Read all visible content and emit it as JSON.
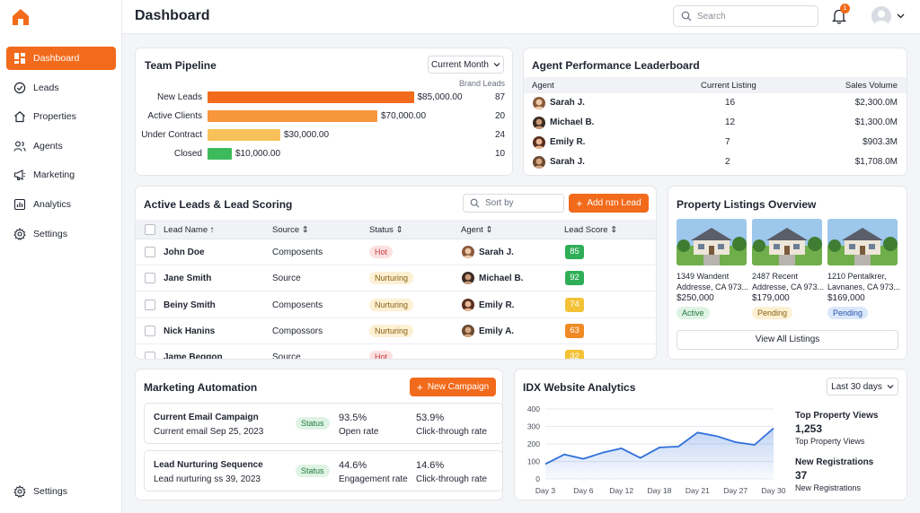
{
  "nav": {
    "items": [
      {
        "label": "Dashboard",
        "icon": "dashboard-icon"
      },
      {
        "label": "Leads",
        "icon": "check-circle-icon"
      },
      {
        "label": "Properties",
        "icon": "home-icon"
      },
      {
        "label": "Agents",
        "icon": "users-icon"
      },
      {
        "label": "Marketing",
        "icon": "megaphone-icon"
      },
      {
        "label": "Analytics",
        "icon": "chart-icon"
      },
      {
        "label": "Settings",
        "icon": "gear-icon"
      }
    ],
    "bottom": "Settings"
  },
  "header": {
    "title": "Dashboard",
    "search_placeholder": "Search",
    "notifications": "1"
  },
  "pipeline": {
    "title": "Team Pipeline",
    "filter": "Current Month",
    "column_label": "Brand Leads",
    "rows": [
      {
        "label": "New Leads",
        "value": "$85,000.00",
        "count": "87",
        "amount": 85000,
        "color": "#f26a1b"
      },
      {
        "label": "Active Clients",
        "value": "$70,000.00",
        "count": "20",
        "amount": 70000,
        "color": "#f7963c"
      },
      {
        "label": "Under Contract",
        "value": "$30,000.00",
        "count": "24",
        "amount": 30000,
        "color": "#f8c15a"
      },
      {
        "label": "Closed",
        "value": "$10,000.00",
        "count": "10",
        "amount": 10000,
        "color": "#3dba5c"
      }
    ]
  },
  "leaderboard": {
    "title": "Agent Performance Leaderboard",
    "headers": [
      "Agent",
      "Current Listing",
      "Sales Volume"
    ],
    "rows": [
      {
        "agent": "Sarah J.",
        "listing": "16",
        "volume": "$2,300.0M"
      },
      {
        "agent": "Michael B.",
        "listing": "12",
        "volume": "$1,300.0M"
      },
      {
        "agent": "Emily R.",
        "listing": "7",
        "volume": "$903.3M"
      },
      {
        "agent": "Sarah J.",
        "listing": "2",
        "volume": "$1,708.0M"
      }
    ]
  },
  "leads": {
    "title": "Active Leads & Lead Scoring",
    "sort_placeholder": "Sort by",
    "add_button": "Add nɪn Lead",
    "headers": [
      "Lead Name",
      "Source",
      "Status",
      "Agent",
      "Lead Score"
    ],
    "rows": [
      {
        "name": "John Doe",
        "source": "Composents",
        "status": "Hot",
        "agent": "Sarah J.",
        "score": "85"
      },
      {
        "name": "Jane Smith",
        "source": "Source",
        "status": "Nurturing",
        "agent": "Michael B.",
        "score": "92"
      },
      {
        "name": "Beiny Smith",
        "source": "Composents",
        "status": "Nurturing",
        "agent": "Emily R.",
        "score": "74"
      },
      {
        "name": "Nick Hanins",
        "source": "Compossors",
        "status": "Nurturing",
        "agent": "Emily A.",
        "score": "63"
      },
      {
        "name": "Jame Beggon",
        "source": "Source",
        "status": "Hot",
        "agent": "",
        "score": "32"
      }
    ]
  },
  "listings": {
    "title": "Property Listings Overview",
    "items": [
      {
        "addr1": "1349 Wandent",
        "addr2": "Addresse, CA 973...",
        "price": "$250,000",
        "status": "Active"
      },
      {
        "addr1": "2487 Recent",
        "addr2": "Addresse, CA 973...",
        "price": "$179,000",
        "status": "Pending"
      },
      {
        "addr1": "1210 Pentalkrer,",
        "addr2": "Lavnanes, CA 973...",
        "price": "$169,000",
        "status": "Pending"
      }
    ],
    "view_all": "View All Listings"
  },
  "marketing": {
    "title": "Marketing Automation",
    "new_button": "New Campaign",
    "campaigns": [
      {
        "title": "Current Email Campaign",
        "sub": "Current email Sep 25, 2023",
        "status": "Status",
        "m1v": "93.5%",
        "m1l": "Open rate",
        "m2v": "53.9%",
        "m2l": "Click-through rate"
      },
      {
        "title": "Lead Nurturing Sequence",
        "sub": "Lead nurturing ss 39, 2023",
        "status": "Status",
        "m1v": "44.6%",
        "m1l": "Engagement rate",
        "m2v": "14.6%",
        "m2l": "Click-through rate"
      }
    ]
  },
  "idx": {
    "title": "IDX Website Analytics",
    "range": "Last 30 days",
    "stats": [
      {
        "title": "Top Property Views",
        "value": "1,253",
        "sub": "Top Property Views"
      },
      {
        "title": "New Registrations",
        "value": "37",
        "sub": "New Registrations"
      }
    ]
  },
  "chart_data": {
    "type": "area",
    "x": [
      "Day 3",
      "Day 6",
      "Day 12",
      "Day 18",
      "Day 21",
      "Day 27",
      "Day 30"
    ],
    "points": [
      [
        0,
        85
      ],
      [
        0.5,
        140
      ],
      [
        1,
        115
      ],
      [
        1.5,
        150
      ],
      [
        2,
        175
      ],
      [
        2.5,
        120
      ],
      [
        3,
        180
      ],
      [
        3.5,
        185
      ],
      [
        4,
        265
      ],
      [
        4.5,
        245
      ],
      [
        5,
        210
      ],
      [
        5.5,
        195
      ],
      [
        6,
        290
      ]
    ],
    "ylim": [
      0,
      400
    ],
    "yticks": [
      "0",
      "100",
      "200",
      "300",
      "400"
    ],
    "color": "#2f6fdb"
  }
}
